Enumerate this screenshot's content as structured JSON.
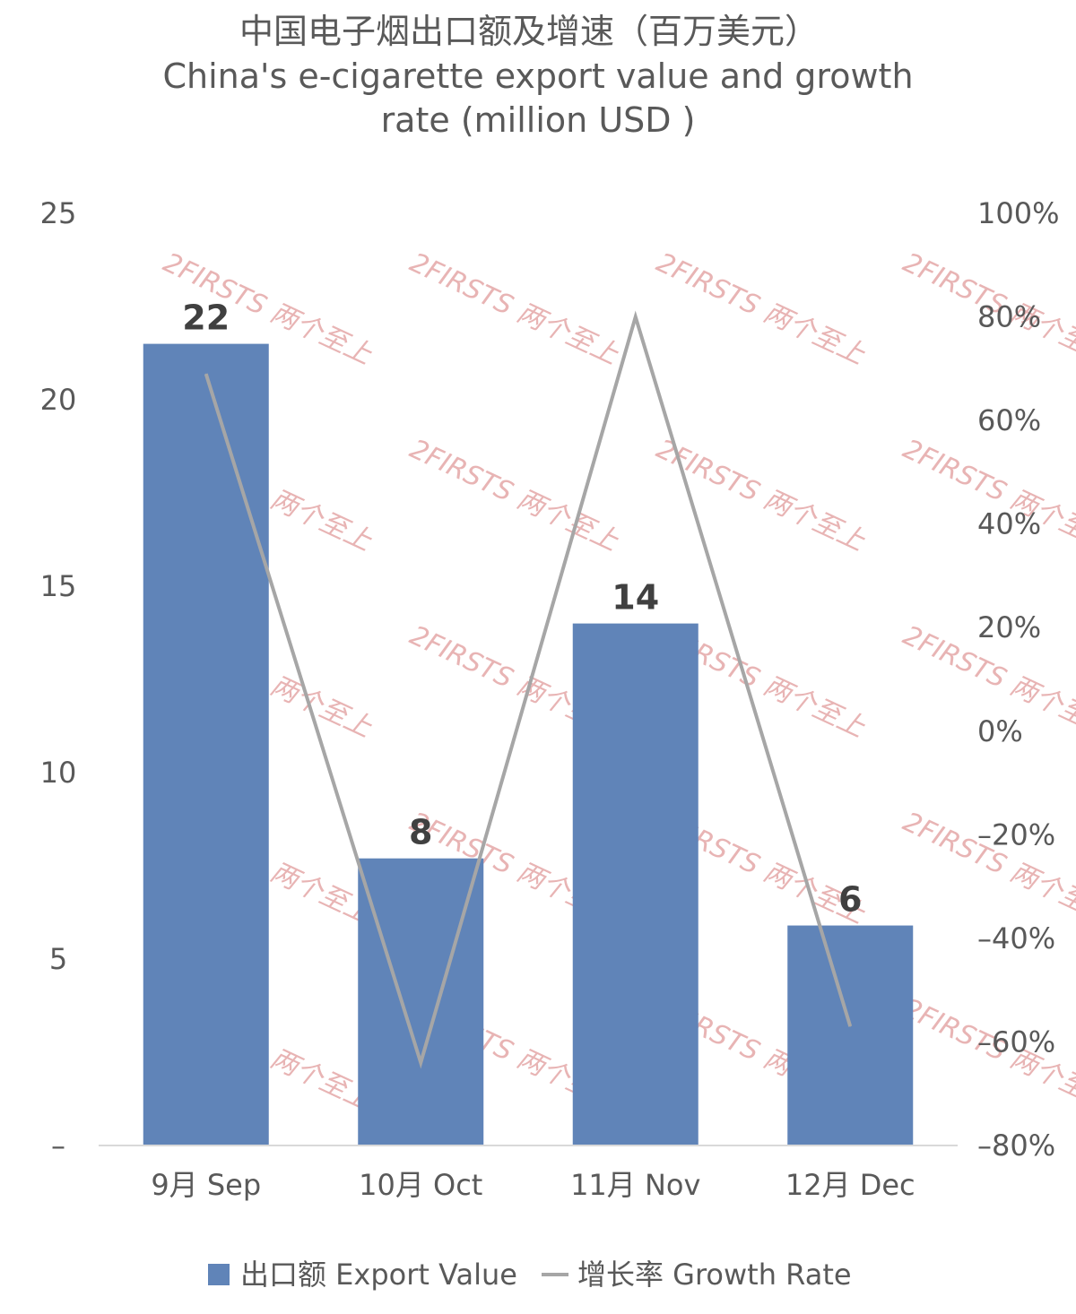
{
  "chart_data": {
    "type": "bar",
    "title_lines": [
      "中国电子烟出口额及增速（百万美元）",
      "China's e-cigarette export value and growth",
      "rate (million USD )"
    ],
    "categories": [
      "9月 Sep",
      "10月 Oct",
      "11月 Nov",
      "12月 Dec"
    ],
    "series": [
      {
        "name": "出口额 Export Value",
        "type": "bar",
        "axis": "left",
        "color": "#6084b8",
        "values": [
          21.5,
          7.7,
          14.0,
          5.9
        ],
        "labels": [
          "22",
          "8",
          "14",
          "6"
        ]
      },
      {
        "name": "增长率 Growth Rate",
        "type": "line",
        "axis": "right",
        "color": "#a6a6a6",
        "values": [
          69,
          -64,
          80,
          -57
        ]
      }
    ],
    "y_left": {
      "ylim": [
        0,
        25
      ],
      "ticks": [
        0,
        5,
        10,
        15,
        20,
        25
      ],
      "tick_labels": [
        "–",
        "5",
        "10",
        "15",
        "20",
        "25"
      ]
    },
    "y_right": {
      "ylim": [
        -80,
        100
      ],
      "ticks": [
        -80,
        -60,
        -40,
        -20,
        0,
        20,
        40,
        60,
        80,
        100
      ],
      "tick_labels": [
        "–80%",
        "–60%",
        "–40%",
        "–20%",
        "0%",
        "20%",
        "40%",
        "60%",
        "80%",
        "100%"
      ]
    },
    "legend_position": "bottom",
    "grid": false
  },
  "watermark": {
    "text": "2FIRSTS 两个至上"
  }
}
